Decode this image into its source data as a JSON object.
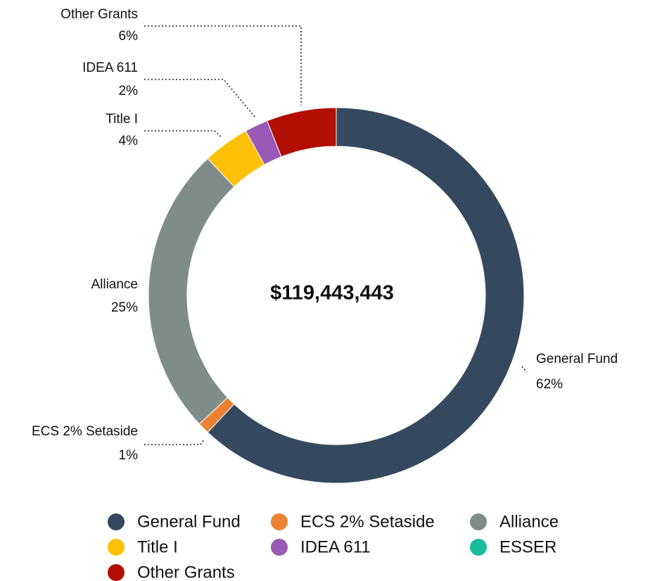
{
  "chart_data": {
    "type": "pie",
    "categories": [
      "General Fund",
      "ECS 2% Setaside",
      "Alliance",
      "Title I",
      "IDEA 611",
      "ESSER",
      "Other Grants"
    ],
    "values": [
      62,
      1,
      25,
      4,
      2,
      0,
      6
    ],
    "value_labels": [
      "62%",
      "1%",
      "25%",
      "4%",
      "2%",
      null,
      "6%"
    ],
    "colors": [
      "#34495e",
      "#ed8133",
      "#7f8c8a",
      "#fec107",
      "#9b59b6",
      "#1abc9c",
      "#b30e04"
    ],
    "center_label": "$119,443,443",
    "legend": "bottom"
  }
}
